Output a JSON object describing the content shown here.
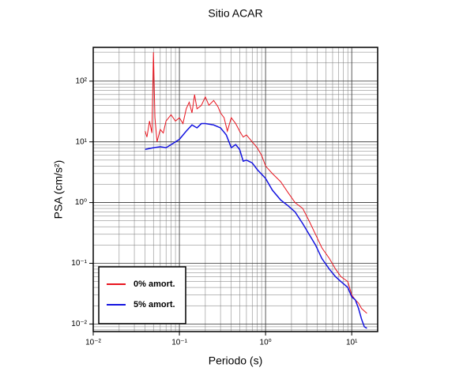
{
  "chart_data": {
    "type": "line",
    "title": "Sitio ACAR",
    "xlabel": "Periodo (s)",
    "ylabel": "PSA (cm/s²)",
    "xscale": "log",
    "yscale": "log",
    "grid": true,
    "legend": "lower left",
    "xlim": [
      0.01,
      20
    ],
    "ylim": [
      0.0075,
      360
    ],
    "xticks": [
      {
        "value": 0.01,
        "label": "10⁻²"
      },
      {
        "value": 0.1,
        "label": "10⁻¹"
      },
      {
        "value": 1,
        "label": "10⁰"
      },
      {
        "value": 10,
        "label": "10¹"
      }
    ],
    "yticks": [
      {
        "value": 0.01,
        "label": "10⁻²"
      },
      {
        "value": 0.1,
        "label": "10⁻¹"
      },
      {
        "value": 1,
        "label": "10⁰"
      },
      {
        "value": 10,
        "label": "10¹"
      },
      {
        "value": 100,
        "label": "10²"
      }
    ],
    "xminor": [
      0.02,
      0.03,
      0.04,
      0.05,
      0.06,
      0.07,
      0.08,
      0.09,
      0.2,
      0.3,
      0.4,
      0.5,
      0.6,
      0.7,
      0.8,
      0.9,
      2,
      3,
      4,
      5,
      6,
      7,
      8,
      9
    ],
    "yminor": [
      0.008,
      0.009,
      0.02,
      0.03,
      0.04,
      0.05,
      0.06,
      0.07,
      0.08,
      0.09,
      0.2,
      0.3,
      0.4,
      0.5,
      0.6,
      0.7,
      0.8,
      0.9,
      2,
      3,
      4,
      5,
      6,
      7,
      8,
      9,
      20,
      30,
      40,
      50,
      60,
      70,
      80,
      90,
      200,
      300
    ],
    "series": [
      {
        "name": "0% amort.",
        "color": "#e8141e",
        "x": [
          0.04,
          0.042,
          0.045,
          0.048,
          0.05,
          0.052,
          0.055,
          0.06,
          0.065,
          0.07,
          0.08,
          0.09,
          0.1,
          0.11,
          0.12,
          0.13,
          0.14,
          0.15,
          0.16,
          0.18,
          0.2,
          0.22,
          0.25,
          0.28,
          0.3,
          0.33,
          0.36,
          0.4,
          0.45,
          0.5,
          0.55,
          0.6,
          0.7,
          0.8,
          0.9,
          1.0,
          1.2,
          1.5,
          1.8,
          2.2,
          2.7,
          3.2,
          3.8,
          4.5,
          5.5,
          6.5,
          7.5,
          9,
          10,
          11,
          12,
          13,
          15
        ],
        "values": [
          15,
          12,
          22,
          14,
          300,
          25,
          10,
          16,
          14,
          22,
          28,
          22,
          25,
          20,
          35,
          45,
          30,
          60,
          35,
          40,
          55,
          40,
          48,
          38,
          30,
          25,
          15,
          25,
          20,
          15,
          12,
          13,
          10,
          8,
          6,
          4,
          3,
          2.2,
          1.5,
          1.0,
          0.8,
          0.5,
          0.3,
          0.18,
          0.12,
          0.08,
          0.06,
          0.05,
          0.03,
          0.025,
          0.022,
          0.018,
          0.015
        ]
      },
      {
        "name": "5% amort.",
        "color": "#1414e0",
        "x": [
          0.04,
          0.05,
          0.06,
          0.07,
          0.08,
          0.1,
          0.12,
          0.14,
          0.16,
          0.18,
          0.2,
          0.25,
          0.3,
          0.35,
          0.4,
          0.45,
          0.5,
          0.55,
          0.6,
          0.7,
          0.8,
          1.0,
          1.2,
          1.5,
          1.8,
          2.2,
          2.7,
          3.2,
          3.8,
          4.5,
          5.5,
          6.5,
          7.5,
          9,
          10,
          11,
          12,
          13,
          14,
          15
        ],
        "values": [
          7.5,
          8,
          8.3,
          8,
          9,
          11,
          15,
          19,
          17,
          20,
          20,
          19,
          17,
          13,
          8,
          9,
          7.5,
          4.8,
          5,
          4.5,
          3.5,
          2.5,
          1.6,
          1.1,
          0.9,
          0.7,
          0.45,
          0.3,
          0.2,
          0.12,
          0.08,
          0.06,
          0.05,
          0.04,
          0.028,
          0.025,
          0.018,
          0.012,
          0.009,
          0.0085
        ]
      }
    ]
  }
}
